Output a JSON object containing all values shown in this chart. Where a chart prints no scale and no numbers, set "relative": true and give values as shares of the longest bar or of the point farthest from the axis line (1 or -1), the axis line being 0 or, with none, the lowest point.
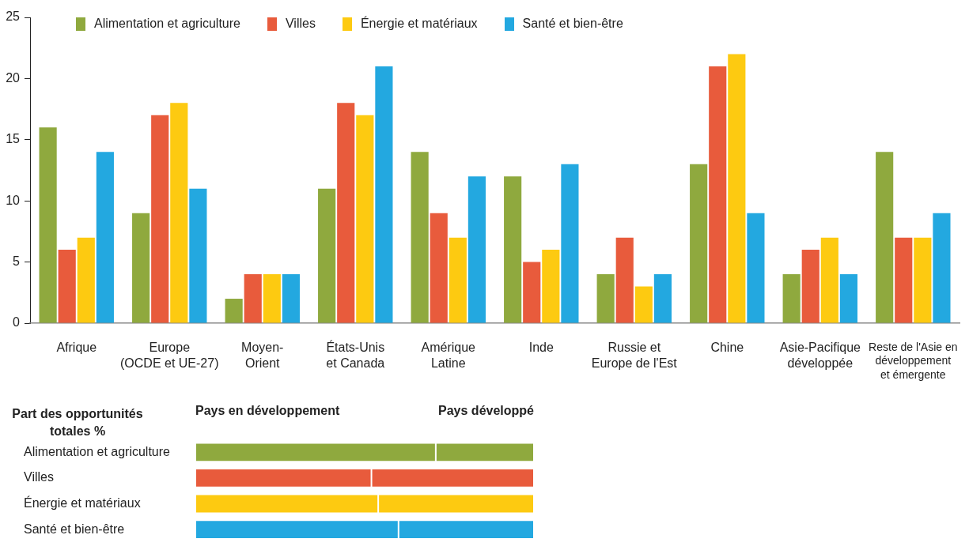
{
  "chart_data": [
    {
      "type": "bar",
      "categories": [
        "Afrique",
        "Europe\n(OCDE et UE-27)",
        "Moyen-\nOrient",
        "États-Unis\net Canada",
        "Amérique\nLatine",
        "Inde",
        "Russie et\nEurope de l'Est",
        "Chine",
        "Asie-Pacifique\ndéveloppée",
        "Reste de l'Asie en\ndéveloppement\net émergente"
      ],
      "series": [
        {
          "name": "Alimentation et agriculture",
          "color": "#8fa93e",
          "values": [
            16,
            9,
            2,
            11,
            14,
            12,
            4,
            13,
            4,
            14
          ]
        },
        {
          "name": "Villes",
          "color": "#e85b3c",
          "values": [
            6,
            17,
            4,
            18,
            9,
            5,
            7,
            21,
            6,
            7
          ]
        },
        {
          "name": "Énergie et matériaux",
          "color": "#fdca11",
          "values": [
            7,
            18,
            4,
            17,
            7,
            6,
            3,
            22,
            7,
            7
          ]
        },
        {
          "name": "Santé et bien-être",
          "color": "#23a8e0",
          "values": [
            14,
            11,
            4,
            21,
            12,
            13,
            4,
            9,
            4,
            9
          ]
        }
      ],
      "ylim": [
        0,
        25
      ],
      "yticks": [
        0,
        5,
        10,
        15,
        20,
        25
      ],
      "legend": "top left"
    },
    {
      "type": "bar",
      "orientation": "horizontal",
      "stacked": true,
      "relative": true,
      "title": "Part des opportunités totales %",
      "categories": [
        "Alimentation et agriculture",
        "Villes",
        "Énergie et matériaux",
        "Santé et bien-être"
      ],
      "series": [
        {
          "name": "Pays en développement",
          "colors": [
            "#8fa93e",
            "#e85b3c",
            "#fdca11",
            "#23a8e0"
          ],
          "values": [
            0.71,
            0.52,
            0.54,
            0.6
          ]
        },
        {
          "name": "Pays développé",
          "colors": [
            "#8fa93e",
            "#e85b3c",
            "#fdca11",
            "#23a8e0"
          ],
          "values": [
            0.29,
            0.48,
            0.46,
            0.4
          ]
        }
      ]
    }
  ]
}
